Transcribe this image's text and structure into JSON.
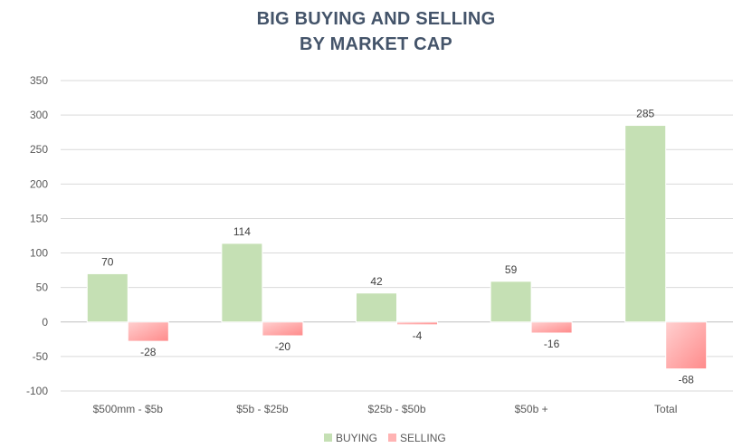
{
  "chart_data": {
    "type": "bar",
    "title_line1": "BIG BUYING AND SELLING",
    "title_line2": "BY MARKET CAP",
    "categories": [
      "$500mm - $5b",
      "$5b - $25b",
      "$25b - $50b",
      "$50b +",
      "Total"
    ],
    "series": [
      {
        "name": "BUYING",
        "values": [
          70,
          114,
          42,
          59,
          285
        ],
        "color": "#c5e0b4"
      },
      {
        "name": "SELLING",
        "values": [
          -28,
          -20,
          -4,
          -16,
          -68
        ],
        "color": "#ff9f9f"
      }
    ],
    "ylim": [
      -100,
      350
    ],
    "yticks": [
      350,
      300,
      250,
      200,
      150,
      100,
      50,
      0,
      -50,
      -100
    ],
    "grid": true,
    "legend_position": "bottom"
  }
}
